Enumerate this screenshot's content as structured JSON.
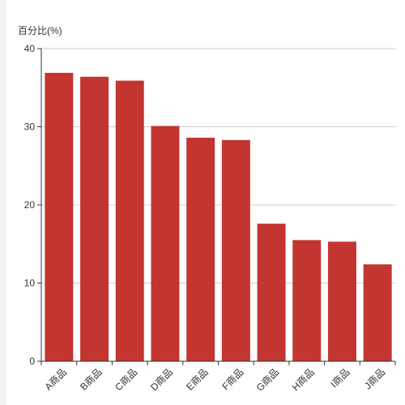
{
  "chart_data": {
    "type": "bar",
    "ylabel": "百分比(%)",
    "categories": [
      "A商品",
      "B商品",
      "C商品",
      "D商品",
      "E商品",
      "F商品",
      "G商品",
      "H商品",
      "I商品",
      "J商品"
    ],
    "values": [
      36.9,
      36.4,
      35.9,
      30.1,
      28.6,
      28.3,
      17.6,
      15.5,
      15.3,
      12.4
    ],
    "ylim": [
      0,
      40
    ],
    "yticks": [
      0,
      10,
      20,
      30,
      40
    ],
    "grid": true,
    "bar_color": "#c23531",
    "grid_color": "#cccccc",
    "axis_color": "#333333"
  }
}
